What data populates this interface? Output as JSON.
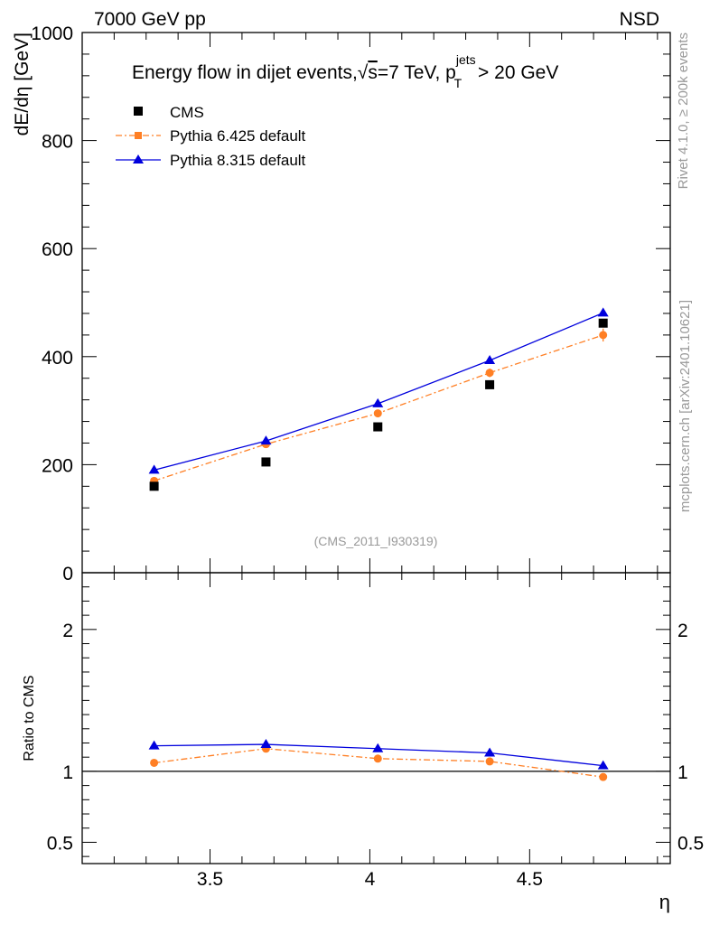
{
  "header": {
    "energy": "7000 GeV pp",
    "process": "NSD"
  },
  "side_labels": {
    "rivet": "Rivet 4.1.0, ≥ 200k events",
    "mcplots": "mcplots.cern.ch [arXiv:2401.10621]"
  },
  "colors": {
    "cms": "#000000",
    "pythia6": "#ff7f24",
    "pythia8": "#0000dd"
  },
  "chart_data": [
    {
      "type": "line",
      "panel": "main",
      "title": {
        "prefix": "Energy flow in dijet events,",
        "sqrt": "√",
        "s": "s",
        "mid": "=7 TeV, p",
        "sup": "jets",
        "sub": "T",
        "suffix": " > 20 GeV"
      },
      "ylabel": "dE/dη [GeV]",
      "xlim": [
        3.1,
        4.94
      ],
      "ylim": [
        0,
        1000
      ],
      "yticks": [
        {
          "value": 0,
          "label": "0"
        },
        {
          "value": 200,
          "label": "200"
        },
        {
          "value": 400,
          "label": "400"
        },
        {
          "value": 600,
          "label": "600"
        },
        {
          "value": 800,
          "label": "800"
        },
        {
          "value": 1000,
          "label": "1000"
        }
      ],
      "watermark": "(CMS_2011_I930319)",
      "legend": [
        "CMS",
        "Pythia 6.425 default",
        "Pythia 8.315 default"
      ],
      "legend_position": "top-left",
      "x": [
        3.325,
        3.675,
        4.025,
        4.375,
        4.73
      ],
      "series": [
        {
          "name": "CMS",
          "style": "square",
          "values": [
            160,
            205,
            270,
            348,
            462
          ]
        },
        {
          "name": "Pythia 6.425 default",
          "style": "dashdot-circle",
          "values": [
            170,
            238,
            295,
            370,
            440
          ],
          "errors": [
            0,
            0,
            0,
            8,
            12
          ]
        },
        {
          "name": "Pythia 8.315 default",
          "style": "solid-triangle",
          "values": [
            190,
            244,
            313,
            393,
            481
          ]
        }
      ]
    },
    {
      "type": "line",
      "panel": "ratio",
      "ylabel": "Ratio to CMS",
      "xlabel": "η",
      "xlim": [
        3.1,
        4.94
      ],
      "ylim": [
        0.35,
        2.4
      ],
      "reference": 1,
      "yticks": [
        {
          "value": 0.5,
          "label": "0.5"
        },
        {
          "value": 1,
          "label": "1"
        },
        {
          "value": 2,
          "label": "2"
        }
      ],
      "xticks": [
        {
          "value": 3.5,
          "label": "3.5"
        },
        {
          "value": 4,
          "label": "4"
        },
        {
          "value": 4.5,
          "label": "4.5"
        }
      ],
      "x": [
        3.325,
        3.675,
        4.025,
        4.375,
        4.73
      ],
      "series": [
        {
          "name": "Pythia 6.425 default",
          "style": "dashdot-circle",
          "values": [
            1.06,
            1.16,
            1.09,
            1.07,
            0.96
          ]
        },
        {
          "name": "Pythia 8.315 default",
          "style": "solid-triangle",
          "values": [
            1.18,
            1.19,
            1.16,
            1.13,
            1.04
          ]
        }
      ]
    }
  ]
}
